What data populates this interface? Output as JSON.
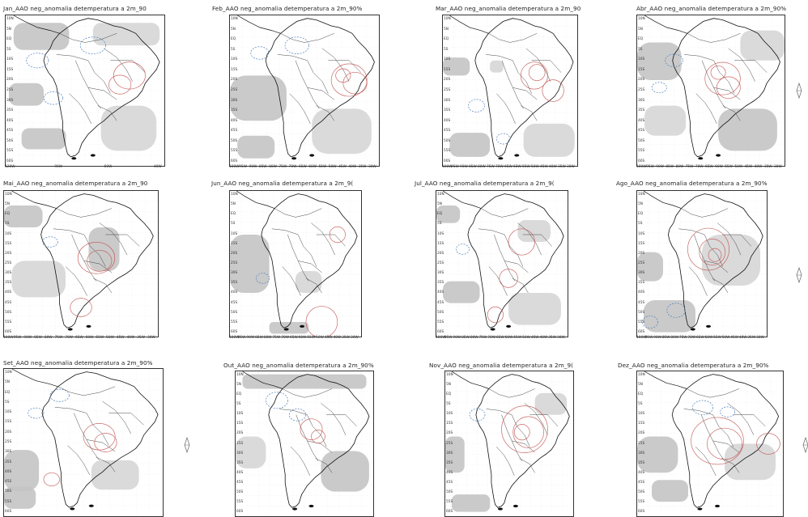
{
  "panels": [
    {
      "title": "Jan_AAO neg_anomalia detemperatura a 2m_90"
    },
    {
      "title": "Feb_AAO neg_anomalia detemperatura a 2m_90%"
    },
    {
      "title": "Mar_AAO neg_anomalia detemperatura a 2m_90"
    },
    {
      "title": "Abr_AAO neg_anomalia detemperatura a 2m_90%"
    },
    {
      "title": "Mai_AAO neg_anomalia detemperatura a 2m_90"
    },
    {
      "title": "Jun_AAO neg_anomalia detemperatura a 2m_9("
    },
    {
      "title": "Jul_AAO neg_anomalia detemperatura a 2m_9("
    },
    {
      "title": "Ago_AAO neg_anomalia detemperatura a 2m_90%"
    },
    {
      "title": "Set_AAO neg_anomalia detemperatura a 2m_90%"
    },
    {
      "title": "Out_AAO neg_anomalia detemperatura a 2m_90%"
    },
    {
      "title": "Nov_AAO neg_anomalia detemperatura a 2m_9("
    },
    {
      "title": "Dez_AAO neg_anomalia detemperatura a 2m_90%"
    }
  ],
  "y_labels": [
    "10N",
    "5N",
    "EQ",
    "5S",
    "10S",
    "15S",
    "20S",
    "25S",
    "30S",
    "35S",
    "40S",
    "45S",
    "50S",
    "55S",
    "60S"
  ],
  "x_labels_sparse": [
    "120W",
    "90W",
    "60W",
    "40W"
  ],
  "x_labels_dense": [
    "100W",
    "95W",
    "90W",
    "85W",
    "80W",
    "75W",
    "70W",
    "65W",
    "60W",
    "55W",
    "50W",
    "45W",
    "40W",
    "35W",
    "30W"
  ],
  "colors": {
    "shading": "#c4c4c4",
    "shading_light": "#d6d6d6",
    "positive_contour": "#c0504d",
    "negative_contour": "#4f81bd",
    "coast": "#111111"
  }
}
